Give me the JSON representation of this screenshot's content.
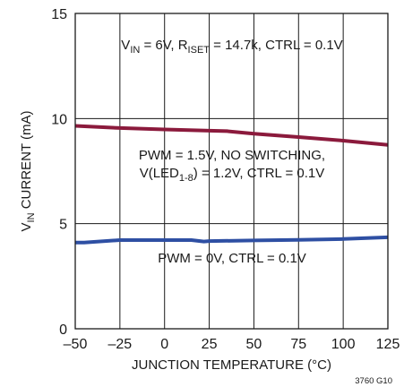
{
  "chart_data": {
    "type": "line",
    "xlabel": "JUNCTION TEMPERATURE (°C)",
    "ylabel": "V_IN CURRENT (mA)",
    "ylabel_parts": {
      "pre": "V",
      "sub": "IN",
      "post": " CURRENT (mA)"
    },
    "xlim": [
      -50,
      125
    ],
    "ylim": [
      0,
      15
    ],
    "x_ticks": [
      -50,
      -25,
      0,
      25,
      50,
      75,
      100,
      125
    ],
    "x_tick_labels": [
      "–50",
      "–25",
      "0",
      "25",
      "50",
      "75",
      "100",
      "125"
    ],
    "y_ticks": [
      0,
      5,
      10,
      15
    ],
    "y_tick_labels": [
      "0",
      "5",
      "10",
      "15"
    ],
    "grid": true,
    "series": [
      {
        "color": "#8b1a3c",
        "x": [
          -50,
          -25,
          0,
          25,
          35,
          50,
          75,
          100,
          125
        ],
        "y": [
          9.65,
          9.55,
          9.48,
          9.42,
          9.4,
          9.28,
          9.12,
          8.95,
          8.75
        ]
      },
      {
        "color": "#2e4fa3",
        "x": [
          -50,
          -45,
          -25,
          0,
          15,
          22,
          25,
          50,
          75,
          100,
          125
        ],
        "y": [
          4.1,
          4.1,
          4.22,
          4.22,
          4.22,
          4.15,
          4.17,
          4.2,
          4.23,
          4.27,
          4.35
        ]
      }
    ],
    "annotations": [
      {
        "id": "conditions",
        "parts": [
          {
            "t": "V",
            "sub": false
          },
          {
            "t": "IN",
            "sub": true
          },
          {
            "t": " = 6V, R",
            "sub": false
          },
          {
            "t": "ISET",
            "sub": true
          },
          {
            "t": " = 14.7k, CTRL = 0.1V",
            "sub": false
          }
        ]
      },
      {
        "id": "upper-curve-label-line1",
        "parts": [
          {
            "t": "PWM = 1.5V, NO SWITCHING,",
            "sub": false
          }
        ]
      },
      {
        "id": "upper-curve-label-line2",
        "parts": [
          {
            "t": "V(LED",
            "sub": false
          },
          {
            "t": "1-8",
            "sub": true
          },
          {
            "t": ") = 1.2V, CTRL = 0.1V",
            "sub": false
          }
        ]
      },
      {
        "id": "lower-curve-label",
        "parts": [
          {
            "t": "PWM = 0V, CTRL = 0.1V",
            "sub": false
          }
        ]
      }
    ],
    "figure_id": "3760 G10"
  }
}
